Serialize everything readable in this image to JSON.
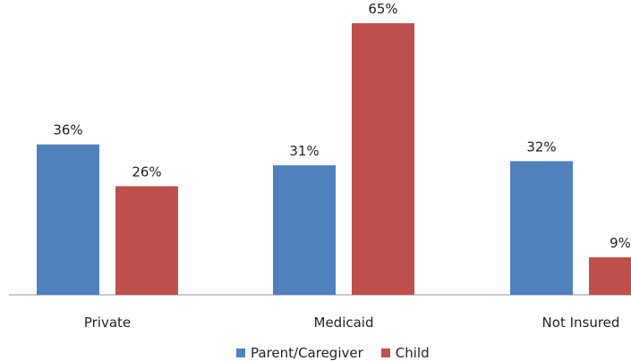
{
  "chart_data": {
    "type": "bar",
    "categories": [
      "Private",
      "Medicaid",
      "Not Insured"
    ],
    "series": [
      {
        "name": "Parent/Caregiver",
        "values": [
          36,
          31,
          32
        ],
        "labels": [
          "36%",
          "31%",
          "32%"
        ],
        "color": "#4F81BD"
      },
      {
        "name": "Child",
        "values": [
          26,
          65,
          9
        ],
        "labels": [
          "26%",
          "65%",
          "9%"
        ],
        "color": "#C0504D"
      }
    ],
    "ylim": [
      0,
      65
    ],
    "grid": false,
    "legend": "bottom",
    "title": "",
    "xlabel": "",
    "ylabel": ""
  }
}
